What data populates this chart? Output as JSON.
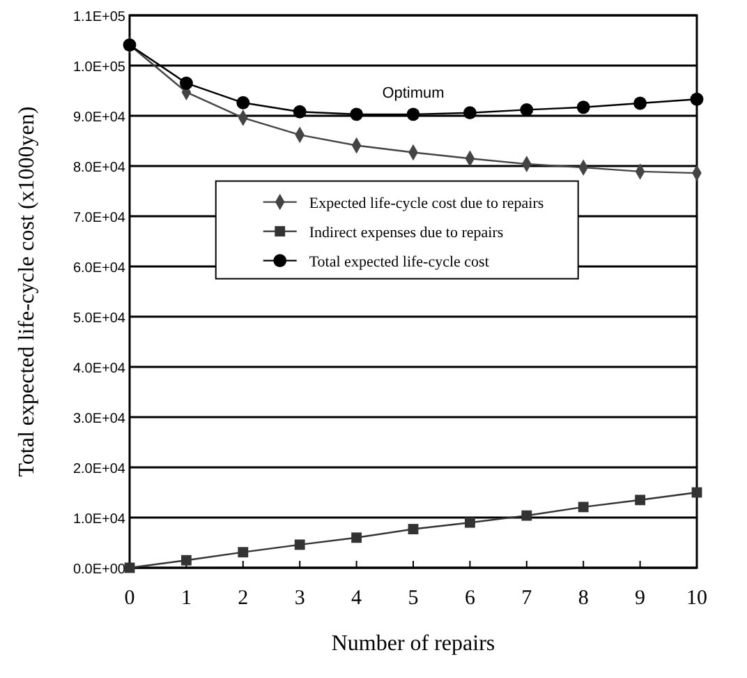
{
  "chart_data": {
    "type": "line",
    "xlabel": "Number of repairs",
    "ylabel": "Total expected life-cycle cost (x1000yen)",
    "x": [
      0,
      1,
      2,
      3,
      4,
      5,
      6,
      7,
      8,
      9,
      10
    ],
    "xlim": [
      0,
      10
    ],
    "xticks": [
      0,
      1,
      2,
      3,
      4,
      5,
      6,
      7,
      8,
      9,
      10
    ],
    "ylim": [
      0,
      110000
    ],
    "yticks": [
      {
        "value": 0,
        "label": "0.0E+00"
      },
      {
        "value": 10000,
        "label": "1.0E+04"
      },
      {
        "value": 20000,
        "label": "2.0E+04"
      },
      {
        "value": 30000,
        "label": "3.0E+04"
      },
      {
        "value": 40000,
        "label": "4.0E+04"
      },
      {
        "value": 50000,
        "label": "5.0E+04"
      },
      {
        "value": 60000,
        "label": "6.0E+04"
      },
      {
        "value": 70000,
        "label": "7.0E+04"
      },
      {
        "value": 80000,
        "label": "8.0E+04"
      },
      {
        "value": 90000,
        "label": "9.0E+04"
      },
      {
        "value": 100000,
        "label": "1.0E+05"
      },
      {
        "value": 110000,
        "label": "1.1E+05"
      }
    ],
    "grid": "y",
    "legend": "top",
    "series": [
      {
        "name": "Expected life-cycle cost due to repairs",
        "color": "#444444",
        "marker": "diamond",
        "values": [
          104100,
          94700,
          89600,
          86200,
          84100,
          82700,
          81500,
          80400,
          79700,
          78900,
          78600
        ]
      },
      {
        "name": "Indirect expenses due to repairs",
        "color": "#333333",
        "marker": "square",
        "values": [
          0,
          1500,
          3100,
          4600,
          6000,
          7700,
          9000,
          10400,
          12100,
          13500,
          15000
        ]
      },
      {
        "name": "Total expected life-cycle cost",
        "color": "#000000",
        "marker": "circle",
        "values": [
          104100,
          96500,
          92600,
          90800,
          90300,
          90300,
          90600,
          91200,
          91700,
          92500,
          93300
        ]
      }
    ],
    "annotations": [
      "Optimum"
    ]
  }
}
